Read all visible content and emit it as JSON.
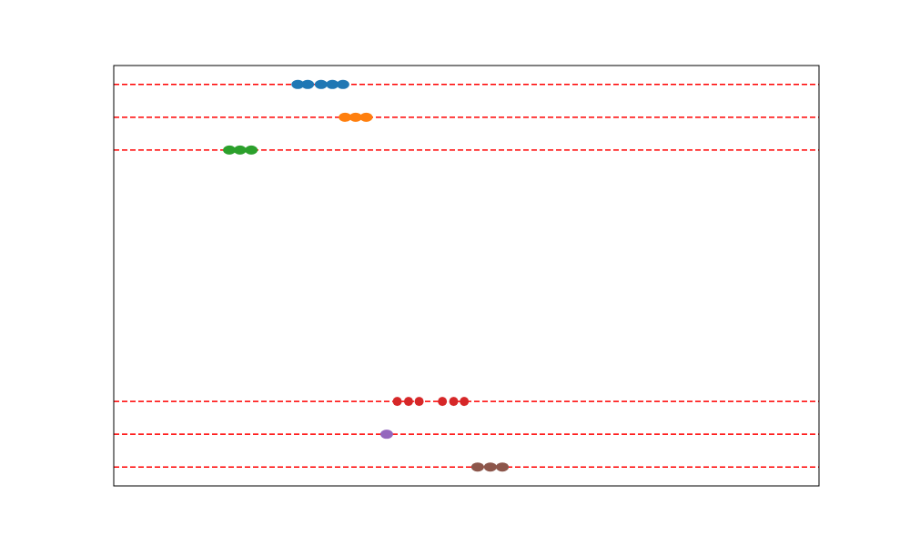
{
  "chart_data": {
    "type": "scatter",
    "title": "",
    "xlabel": "",
    "ylabel": "",
    "grid": false,
    "show_ticks": false,
    "xlim": [
      0,
      100
    ],
    "ylim": [
      0,
      100
    ],
    "reference_line_color": "#ff0000",
    "reference_line_style": "dashed",
    "series": [
      {
        "color": "#1f77b4",
        "y": 95.5,
        "x": [
          26.1,
          27.5,
          29.4,
          31.0,
          32.5
        ],
        "point_shape": "capsule"
      },
      {
        "color": "#ff7f0e",
        "y": 87.7,
        "x": [
          32.8,
          34.3,
          35.8
        ],
        "point_shape": "capsule"
      },
      {
        "color": "#2ca02c",
        "y": 79.9,
        "x": [
          16.4,
          17.9,
          19.5
        ],
        "point_shape": "capsule"
      },
      {
        "color": "#d62728",
        "y": 20.1,
        "x": [
          40.2,
          41.8,
          43.3,
          46.6,
          48.2,
          49.7
        ],
        "point_shape": "circle"
      },
      {
        "color": "#9467bd",
        "y": 12.3,
        "x": [
          38.7
        ],
        "point_shape": "capsule"
      },
      {
        "color": "#8c564b",
        "y": 4.5,
        "x": [
          51.6,
          53.4,
          55.1
        ],
        "point_shape": "capsule"
      }
    ]
  }
}
